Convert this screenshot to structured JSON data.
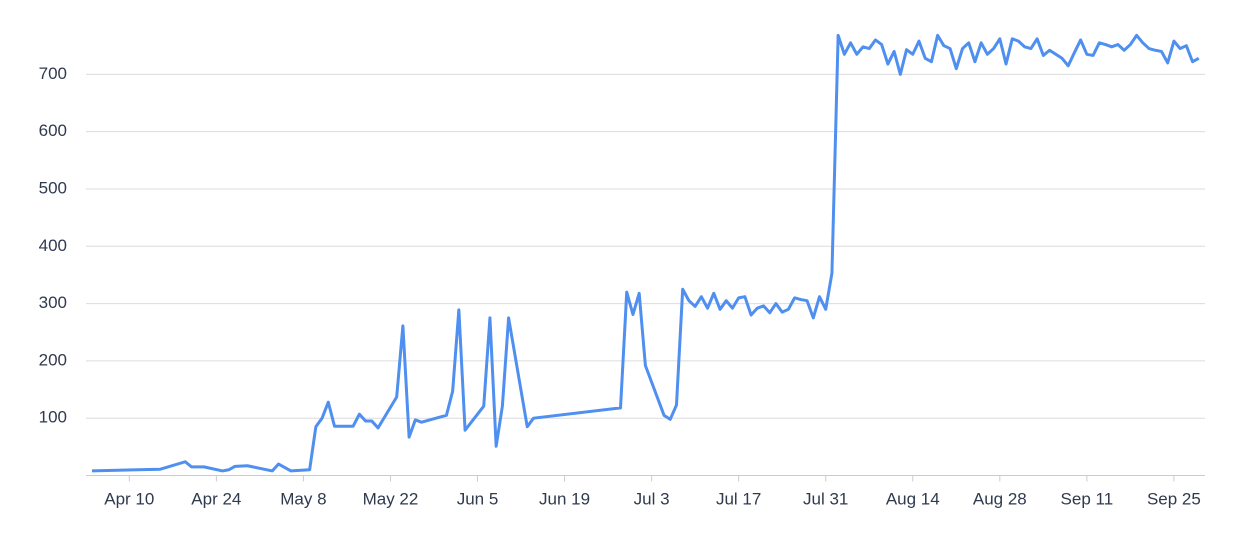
{
  "chart_data": {
    "type": "line",
    "x": [
      "Apr 4",
      "Apr 15",
      "Apr 19",
      "Apr 20",
      "Apr 22",
      "Apr 25",
      "Apr 26",
      "Apr 27",
      "Apr 29",
      "May 3",
      "May 4",
      "May 6",
      "May 9",
      "May 10",
      "May 11",
      "May 12",
      "May 13",
      "May 16",
      "May 17",
      "May 18",
      "May 19",
      "May 20",
      "May 23",
      "May 24",
      "May 25",
      "May 26",
      "May 27",
      "May 31",
      "Jun 1",
      "Jun 2",
      "Jun 3",
      "Jun 6",
      "Jun 7",
      "Jun 8",
      "Jun 9",
      "Jun 10",
      "Jun 13",
      "Jun 14",
      "Jun 28",
      "Jun 29",
      "Jun 30",
      "Jul 1",
      "Jul 2",
      "Jul 5",
      "Jul 6",
      "Jul 7",
      "Jul 8",
      "Jul 9",
      "Jul 10",
      "Jul 11",
      "Jul 12",
      "Jul 13",
      "Jul 14",
      "Jul 15",
      "Jul 16",
      "Jul 17",
      "Jul 18",
      "Jul 19",
      "Jul 20",
      "Jul 21",
      "Jul 22",
      "Jul 23",
      "Jul 24",
      "Jul 25",
      "Jul 26",
      "Jul 27",
      "Jul 28",
      "Jul 29",
      "Jul 30",
      "Jul 31",
      "Aug 1",
      "Aug 2",
      "Aug 3",
      "Aug 4",
      "Aug 5",
      "Aug 6",
      "Aug 7",
      "Aug 8",
      "Aug 9",
      "Aug 10",
      "Aug 11",
      "Aug 12",
      "Aug 13",
      "Aug 14",
      "Aug 15",
      "Aug 16",
      "Aug 17",
      "Aug 18",
      "Aug 19",
      "Aug 20",
      "Aug 21",
      "Aug 22",
      "Aug 23",
      "Aug 24",
      "Aug 25",
      "Aug 26",
      "Aug 27",
      "Aug 28",
      "Aug 29",
      "Aug 30",
      "Aug 31",
      "Sep 1",
      "Sep 2",
      "Sep 3",
      "Sep 4",
      "Sep 5",
      "Sep 6",
      "Sep 7",
      "Sep 8",
      "Sep 9",
      "Sep 10",
      "Sep 11",
      "Sep 12",
      "Sep 13",
      "Sep 14",
      "Sep 15",
      "Sep 16",
      "Sep 17",
      "Sep 18",
      "Sep 19",
      "Sep 20",
      "Sep 21",
      "Sep 22",
      "Sep 23",
      "Sep 24",
      "Sep 25",
      "Sep 26",
      "Sep 27",
      "Sep 28",
      "Sep 29"
    ],
    "series": [
      {
        "color": "#4e8ff0",
        "values": [
          8,
          11,
          24,
          15,
          15,
          8,
          10,
          16,
          17,
          8,
          20,
          8,
          10,
          85,
          100,
          128,
          86,
          86,
          107,
          95,
          95,
          83,
          137,
          261,
          67,
          97,
          93,
          105,
          147,
          289,
          79,
          121,
          275,
          51,
          121,
          275,
          85,
          100,
          118,
          320,
          281,
          318,
          192,
          105,
          98,
          123,
          325,
          305,
          295,
          312,
          292,
          318,
          290,
          305,
          292,
          310,
          312,
          280,
          292,
          296,
          284,
          300,
          285,
          290,
          310,
          307,
          305,
          275,
          312,
          290,
          353,
          768,
          735,
          755,
          735,
          748,
          745,
          760,
          752,
          718,
          740,
          700,
          743,
          735,
          758,
          728,
          722,
          768,
          750,
          745,
          710,
          745,
          755,
          722,
          755,
          735,
          745,
          762,
          718,
          762,
          758,
          748,
          745,
          762,
          733,
          742,
          735,
          728,
          715,
          738,
          760,
          735,
          733,
          755,
          752,
          748,
          752,
          742,
          752,
          768,
          755,
          745,
          742,
          740,
          720,
          758,
          745,
          750,
          722,
          728
        ]
      }
    ],
    "xlim": [
      "Apr 4",
      "Sep 30"
    ],
    "xticks": [
      "Apr 10",
      "Apr 24",
      "May 8",
      "May 22",
      "Jun 5",
      "Jun 19",
      "Jul 3",
      "Jul 17",
      "Jul 31",
      "Aug 14",
      "Aug 28",
      "Sep 11",
      "Sep 25"
    ],
    "ylim": [
      0,
      780
    ],
    "yticks": [
      100,
      200,
      300,
      400,
      500,
      600,
      700
    ],
    "grid": true
  }
}
